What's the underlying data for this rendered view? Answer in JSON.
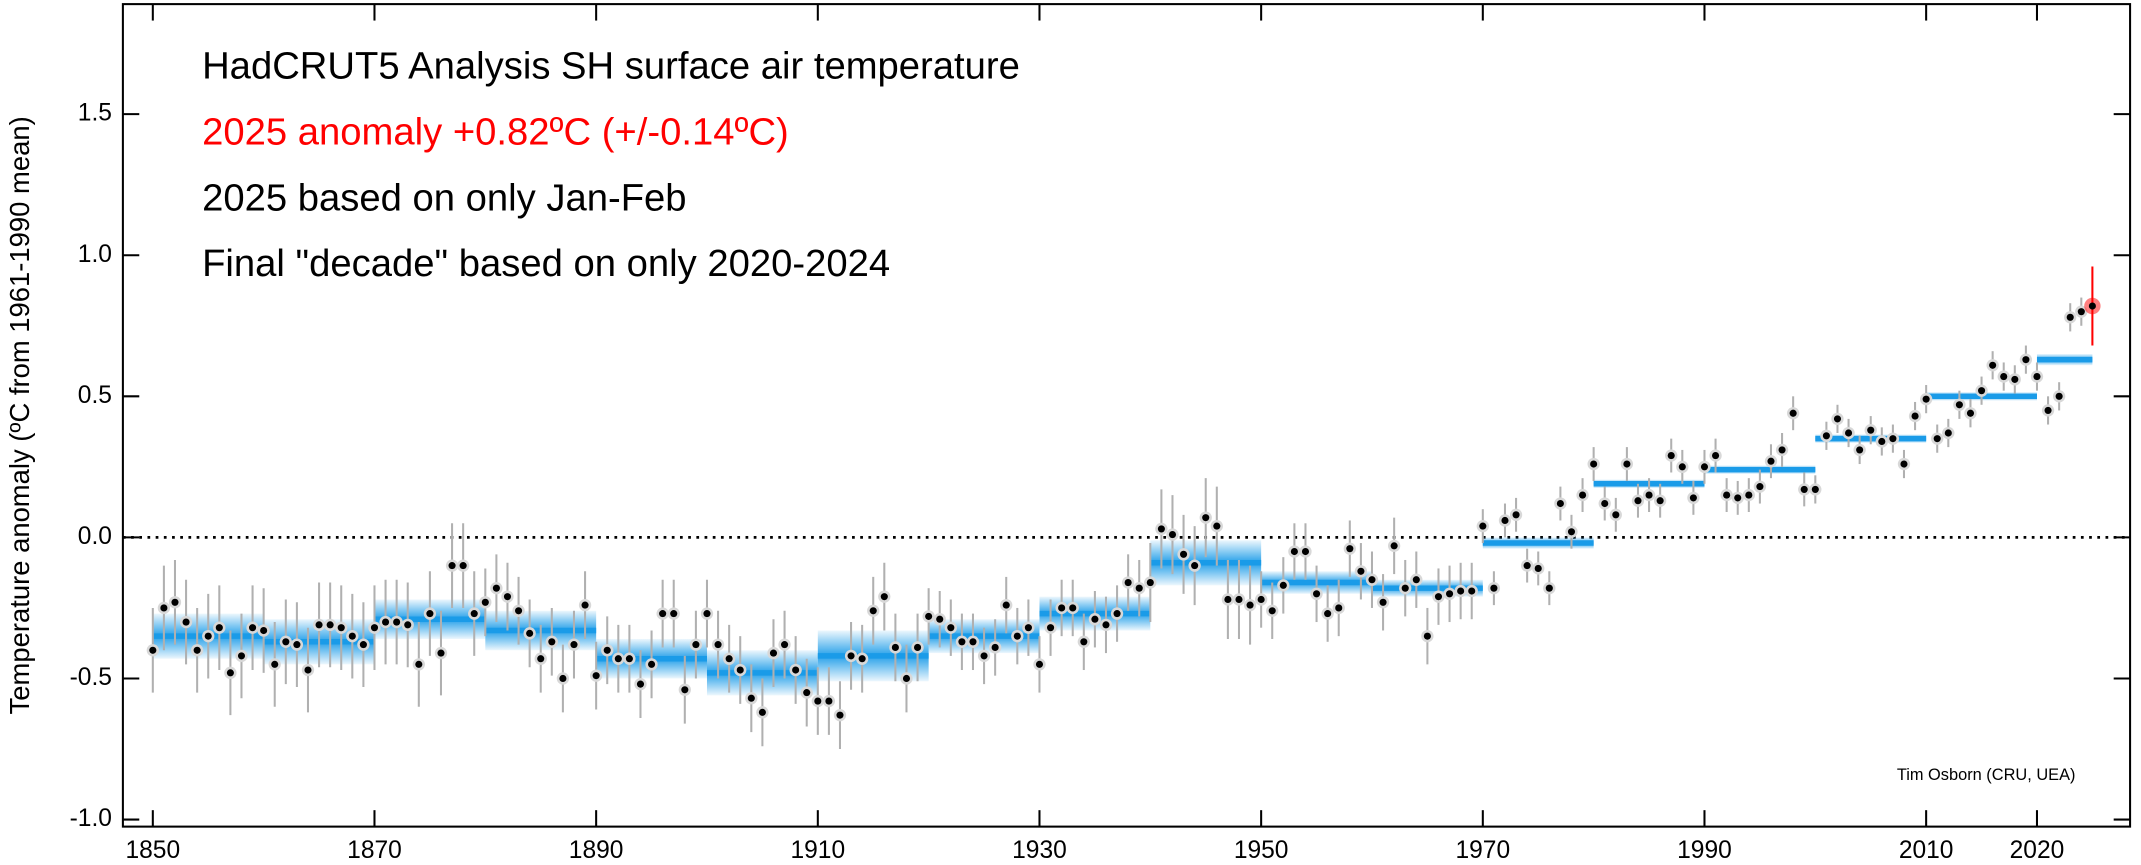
{
  "chart_data": {
    "type": "annual_decadal",
    "title": "HadCRUT5 Analysis SH surface air temperature",
    "annotations": [
      "2025 anomaly +0.82ºC (+/-0.14ºC)",
      "2025 based on only Jan-Feb",
      "Final \"decade\" based on only 2020-2024"
    ],
    "credit": "Tim Osborn (CRU, UEA)",
    "y_label": "Temperature anomaly (ºC from 1961-1990 mean)",
    "xlim": [
      1847.3,
      2028.4
    ],
    "ylim": [
      -1.025,
      1.89
    ],
    "xticks": [
      1850,
      1870,
      1890,
      1910,
      1930,
      1950,
      1970,
      1990,
      2010,
      2020
    ],
    "yticks": [
      {
        "value": -1.0,
        "label": "-1.0"
      },
      {
        "value": -0.5,
        "label": "-0.5"
      },
      {
        "value": 0,
        "label": "0.0"
      },
      {
        "value": 0.5,
        "label": "0.5"
      },
      {
        "value": 1.0,
        "label": "1.0"
      },
      {
        "value": 1.5,
        "label": "1.5"
      }
    ],
    "zero_line": 0,
    "x_start": 1850,
    "values": [
      -0.4,
      -0.25,
      -0.23,
      -0.3,
      -0.4,
      -0.35,
      -0.32,
      -0.48,
      -0.42,
      -0.32,
      -0.33,
      -0.45,
      -0.37,
      -0.38,
      -0.47,
      -0.31,
      -0.31,
      -0.32,
      -0.35,
      -0.38,
      -0.32,
      -0.3,
      -0.3,
      -0.31,
      -0.45,
      -0.27,
      -0.41,
      -0.1,
      -0.1,
      -0.27,
      -0.23,
      -0.18,
      -0.21,
      -0.26,
      -0.34,
      -0.43,
      -0.37,
      -0.5,
      -0.38,
      -0.24,
      -0.49,
      -0.4,
      -0.43,
      -0.43,
      -0.52,
      -0.45,
      -0.27,
      -0.27,
      -0.54,
      -0.38,
      -0.27,
      -0.38,
      -0.43,
      -0.47,
      -0.57,
      -0.62,
      -0.41,
      -0.38,
      -0.47,
      -0.55,
      -0.58,
      -0.58,
      -0.63,
      -0.42,
      -0.43,
      -0.26,
      -0.21,
      -0.39,
      -0.5,
      -0.39,
      -0.28,
      -0.29,
      -0.32,
      -0.37,
      -0.37,
      -0.42,
      -0.39,
      -0.24,
      -0.35,
      -0.32,
      -0.45,
      -0.32,
      -0.25,
      -0.25,
      -0.37,
      -0.29,
      -0.31,
      -0.27,
      -0.16,
      -0.18,
      -0.16,
      0.03,
      0.01,
      -0.06,
      -0.1,
      0.07,
      0.04,
      -0.22,
      -0.22,
      -0.24,
      -0.22,
      -0.26,
      -0.17,
      -0.05,
      -0.05,
      -0.2,
      -0.27,
      -0.25,
      -0.04,
      -0.12,
      -0.15,
      -0.23,
      -0.03,
      -0.18,
      -0.15,
      -0.35,
      -0.21,
      -0.2,
      -0.19,
      -0.19,
      0.04,
      -0.18,
      0.06,
      0.08,
      -0.1,
      -0.11,
      -0.18,
      0.12,
      0.02,
      0.15,
      0.26,
      0.12,
      0.08,
      0.26,
      0.13,
      0.15,
      0.13,
      0.29,
      0.25,
      0.14,
      0.25,
      0.29,
      0.15,
      0.14,
      0.15,
      0.18,
      0.27,
      0.31,
      0.44,
      0.17,
      0.17,
      0.36,
      0.42,
      0.37,
      0.31,
      0.38,
      0.34,
      0.35,
      0.26,
      0.43,
      0.49,
      0.35,
      0.37,
      0.47,
      0.44,
      0.52,
      0.61,
      0.57,
      0.56,
      0.63,
      0.57,
      0.45,
      0.5,
      0.78,
      0.8,
      0.82
    ],
    "errors": [
      0.15,
      0.15,
      0.15,
      0.15,
      0.15,
      0.15,
      0.15,
      0.15,
      0.15,
      0.15,
      0.15,
      0.15,
      0.15,
      0.15,
      0.15,
      0.15,
      0.15,
      0.15,
      0.15,
      0.15,
      0.15,
      0.15,
      0.15,
      0.15,
      0.15,
      0.15,
      0.15,
      0.15,
      0.15,
      0.15,
      0.12,
      0.12,
      0.12,
      0.12,
      0.12,
      0.12,
      0.12,
      0.12,
      0.12,
      0.12,
      0.12,
      0.12,
      0.12,
      0.12,
      0.12,
      0.12,
      0.12,
      0.12,
      0.12,
      0.12,
      0.12,
      0.12,
      0.12,
      0.12,
      0.12,
      0.12,
      0.12,
      0.12,
      0.12,
      0.12,
      0.12,
      0.12,
      0.12,
      0.12,
      0.12,
      0.12,
      0.12,
      0.12,
      0.12,
      0.12,
      0.1,
      0.1,
      0.1,
      0.1,
      0.1,
      0.1,
      0.1,
      0.1,
      0.1,
      0.1,
      0.1,
      0.1,
      0.1,
      0.1,
      0.1,
      0.1,
      0.1,
      0.1,
      0.1,
      0.1,
      0.14,
      0.14,
      0.14,
      0.14,
      0.14,
      0.14,
      0.14,
      0.14,
      0.14,
      0.14,
      0.1,
      0.1,
      0.1,
      0.1,
      0.1,
      0.1,
      0.1,
      0.1,
      0.1,
      0.1,
      0.1,
      0.1,
      0.1,
      0.1,
      0.1,
      0.1,
      0.1,
      0.1,
      0.1,
      0.1,
      0.06,
      0.06,
      0.06,
      0.06,
      0.06,
      0.06,
      0.06,
      0.06,
      0.06,
      0.06,
      0.06,
      0.06,
      0.06,
      0.06,
      0.06,
      0.06,
      0.06,
      0.06,
      0.06,
      0.06,
      0.06,
      0.06,
      0.06,
      0.06,
      0.06,
      0.06,
      0.06,
      0.06,
      0.06,
      0.06,
      0.05,
      0.05,
      0.05,
      0.05,
      0.05,
      0.05,
      0.05,
      0.05,
      0.05,
      0.05,
      0.05,
      0.05,
      0.05,
      0.05,
      0.05,
      0.05,
      0.05,
      0.05,
      0.05,
      0.05,
      0.05,
      0.05,
      0.05,
      0.05,
      0.05,
      0.14
    ],
    "decade_bounds": [
      1850,
      1860,
      1870,
      1880,
      1890,
      1900,
      1910,
      1920,
      1930,
      1940,
      1950,
      1960,
      1970,
      1980,
      1990,
      2000,
      2010,
      2020,
      2025
    ],
    "decade_means": [
      -0.35,
      -0.37,
      -0.29,
      -0.33,
      -0.43,
      -0.48,
      -0.42,
      -0.35,
      -0.27,
      -0.09,
      -0.16,
      -0.18,
      -0.02,
      0.19,
      0.24,
      0.35,
      0.5,
      0.63
    ],
    "decade_errors": [
      0.08,
      0.08,
      0.07,
      0.07,
      0.07,
      0.08,
      0.09,
      0.06,
      0.06,
      0.08,
      0.04,
      0.03,
      0.02,
      0.015,
      0.015,
      0.015,
      0.015,
      0.02
    ],
    "band_color": "#1a9be8",
    "point_color": "#000000",
    "error_color": "#b0b0b0",
    "highlight_color": "#ff0000"
  }
}
